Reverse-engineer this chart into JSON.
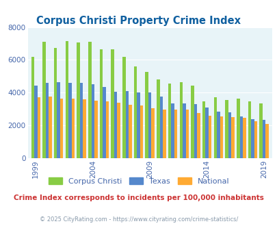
{
  "title": "Corpus Christi Property Crime Index",
  "title_color": "#1060a0",
  "subtitle": "Crime Index corresponds to incidents per 100,000 inhabitants",
  "subtitle_color": "#cc3333",
  "copyright": "© 2025 CityRating.com - https://www.cityrating.com/crime-statistics/",
  "copyright_color": "#8899aa",
  "years": [
    1999,
    2000,
    2001,
    2002,
    2003,
    2004,
    2005,
    2006,
    2007,
    2008,
    2009,
    2010,
    2011,
    2012,
    2013,
    2014,
    2015,
    2016,
    2017,
    2018,
    2019
  ],
  "corpus_christi": [
    6200,
    7100,
    6750,
    7150,
    7050,
    7100,
    6650,
    6650,
    6200,
    5600,
    5250,
    4800,
    4550,
    4650,
    4450,
    3450,
    3700,
    3550,
    3650,
    3450,
    3350
  ],
  "texas": [
    4450,
    4600,
    4650,
    4600,
    4600,
    4500,
    4350,
    4050,
    4100,
    4000,
    4000,
    3750,
    3350,
    3350,
    3300,
    3100,
    2850,
    2800,
    2550,
    2400,
    2350
  ],
  "national": [
    3700,
    3750,
    3650,
    3650,
    3600,
    3500,
    3450,
    3400,
    3250,
    3200,
    3050,
    2950,
    2950,
    2950,
    2750,
    2600,
    2550,
    2500,
    2450,
    2250,
    2100
  ],
  "cc_color": "#88cc44",
  "tx_color": "#5588cc",
  "nat_color": "#ffaa33",
  "bg_color": "#e8f4f8",
  "ylim": [
    0,
    8000
  ],
  "yticks": [
    0,
    2000,
    4000,
    6000,
    8000
  ],
  "xtick_years": [
    1999,
    2004,
    2009,
    2014,
    2019
  ],
  "legend_labels": [
    "Corpus Christi",
    "Texas",
    "National"
  ]
}
